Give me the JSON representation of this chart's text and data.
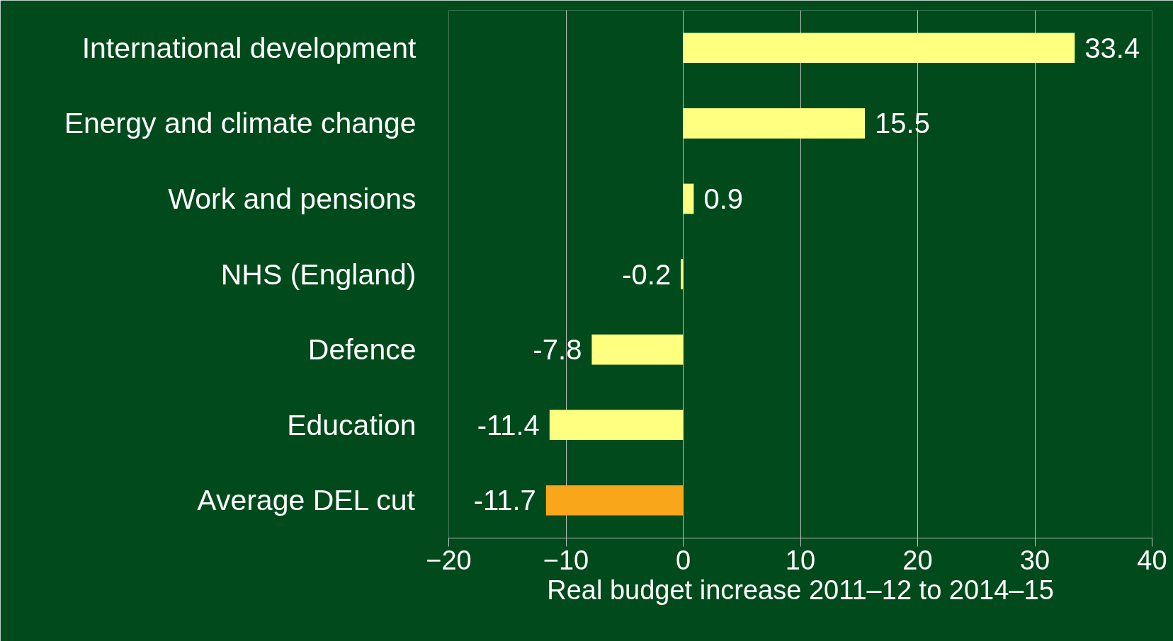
{
  "chart_data": {
    "type": "bar",
    "orientation": "horizontal",
    "xlabel": "Real budget increase 2011–12 to 2014–15",
    "categories": [
      "International development",
      "Energy and climate change",
      "Work and pensions",
      "NHS (England)",
      "Defence",
      "Education",
      "Average DEL cut"
    ],
    "values": [
      33.4,
      15.5,
      0.9,
      -0.2,
      -7.8,
      -11.4,
      -11.7
    ],
    "colors": [
      "#ffff80",
      "#ffff80",
      "#ffff80",
      "#ffff80",
      "#ffff80",
      "#ffff80",
      "#f9a61a"
    ],
    "xlim": [
      -20,
      40
    ],
    "xticks": [
      -20,
      -10,
      0,
      10,
      20,
      30,
      40
    ],
    "grid": "x",
    "data_labels": true
  }
}
